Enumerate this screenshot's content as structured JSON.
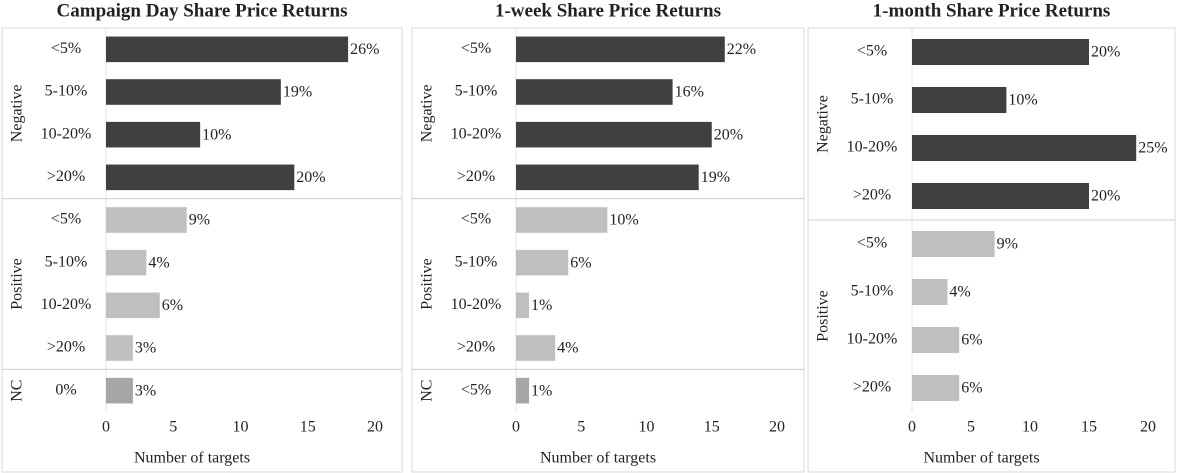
{
  "chart_data": [
    {
      "type": "bar",
      "title": "Campaign Day Share Price Returns",
      "x_label": "Number of targets",
      "xlim": [
        0,
        20
      ],
      "xticks": [
        0,
        5,
        10,
        15,
        20
      ],
      "groups": [
        {
          "name": "Negative",
          "color": "#404040",
          "categories": [
            "<5%",
            "5-10%",
            "10-20%",
            ">20%"
          ],
          "values": [
            18,
            13,
            7,
            14
          ],
          "value_labels": [
            "26%",
            "19%",
            "10%",
            "20%"
          ]
        },
        {
          "name": "Positive",
          "color": "#bfbfbf",
          "categories": [
            "<5%",
            "5-10%",
            "10-20%",
            ">20%"
          ],
          "values": [
            6,
            3,
            4,
            2
          ],
          "value_labels": [
            "9%",
            "4%",
            "6%",
            "3%"
          ]
        },
        {
          "name": "NC",
          "color": "#a6a6a6",
          "categories": [
            "0%"
          ],
          "values": [
            2
          ],
          "value_labels": [
            "3%"
          ]
        }
      ]
    },
    {
      "type": "bar",
      "title": "1-week Share Price Returns",
      "x_label": "Number of targets",
      "xlim": [
        0,
        20
      ],
      "xticks": [
        0,
        5,
        10,
        15,
        20
      ],
      "groups": [
        {
          "name": "Negative",
          "color": "#404040",
          "categories": [
            "<5%",
            "5-10%",
            "10-20%",
            ">20%"
          ],
          "values": [
            16,
            12,
            15,
            14
          ],
          "value_labels": [
            "22%",
            "16%",
            "20%",
            "19%"
          ]
        },
        {
          "name": "Positive",
          "color": "#bfbfbf",
          "categories": [
            "<5%",
            "5-10%",
            "10-20%",
            ">20%"
          ],
          "values": [
            7,
            4,
            1,
            3
          ],
          "value_labels": [
            "10%",
            "6%",
            "1%",
            "4%"
          ]
        },
        {
          "name": "NC",
          "color": "#a6a6a6",
          "categories": [
            "<5%"
          ],
          "values": [
            1
          ],
          "value_labels": [
            "1%"
          ]
        }
      ]
    },
    {
      "type": "bar",
      "title": "1-month Share Price Returns",
      "x_label": "Number of targets",
      "xlim": [
        0,
        20
      ],
      "xticks": [
        0,
        5,
        10,
        15,
        20
      ],
      "groups": [
        {
          "name": "Negative",
          "color": "#404040",
          "categories": [
            "<5%",
            "5-10%",
            "10-20%",
            ">20%"
          ],
          "values": [
            15,
            8,
            19,
            15
          ],
          "value_labels": [
            "20%",
            "10%",
            "25%",
            "20%"
          ]
        },
        {
          "name": "Positive",
          "color": "#bfbfbf",
          "categories": [
            "<5%",
            "5-10%",
            "10-20%",
            ">20%"
          ],
          "values": [
            7,
            3,
            4,
            4
          ],
          "value_labels": [
            "9%",
            "4%",
            "6%",
            "6%"
          ]
        }
      ]
    }
  ]
}
